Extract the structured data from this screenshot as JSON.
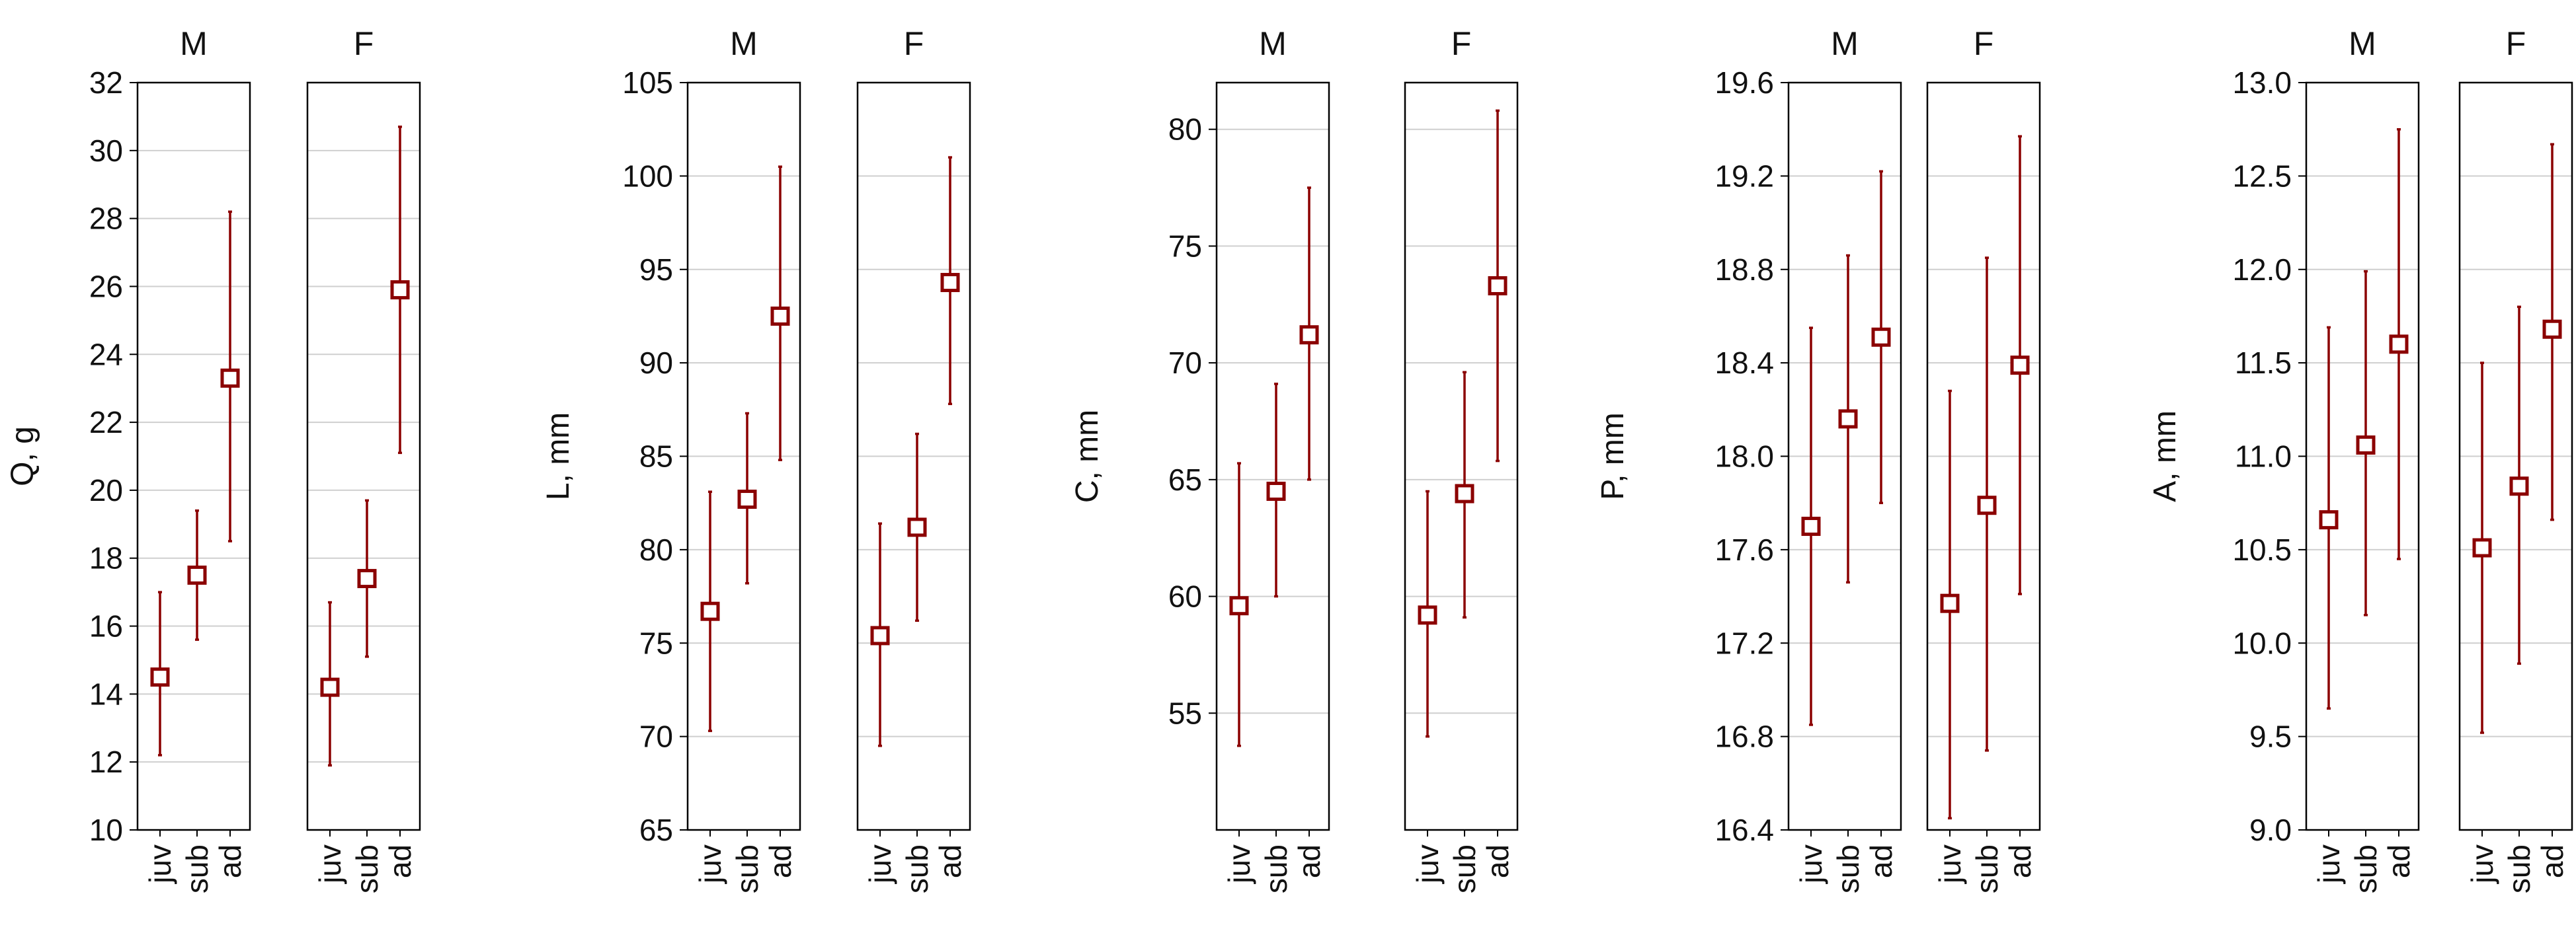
{
  "colors": {
    "marker": "#8b0000",
    "grid": "#cfcfcf",
    "frame": "#000000"
  },
  "chart_data": [
    {
      "type": "scatter",
      "ylabel": "Q, g",
      "ylim": [
        10,
        32
      ],
      "yticks": [
        "10",
        "12",
        "14",
        "16",
        "18",
        "20",
        "22",
        "24",
        "26",
        "28",
        "30",
        "32"
      ],
      "panels": [
        "M",
        "F"
      ],
      "categories": [
        "juv",
        "sub",
        "ad"
      ],
      "grid": true,
      "series": [
        {
          "panel": "M",
          "mean": [
            14.5,
            17.5,
            23.3
          ],
          "low": [
            12.2,
            15.6,
            18.5
          ],
          "high": [
            17.0,
            19.4,
            28.2
          ]
        },
        {
          "panel": "F",
          "mean": [
            14.2,
            17.4,
            25.9
          ],
          "low": [
            11.9,
            15.1,
            21.1
          ],
          "high": [
            16.7,
            19.7,
            30.7
          ]
        }
      ]
    },
    {
      "type": "scatter",
      "ylabel": "L, mm",
      "ylim": [
        65,
        105
      ],
      "yticks": [
        "65",
        "70",
        "75",
        "80",
        "85",
        "90",
        "95",
        "100",
        "105"
      ],
      "panels": [
        "M",
        "F"
      ],
      "categories": [
        "juv",
        "sub",
        "ad"
      ],
      "grid": true,
      "series": [
        {
          "panel": "M",
          "mean": [
            76.7,
            82.7,
            92.5
          ],
          "low": [
            70.3,
            78.2,
            84.8
          ],
          "high": [
            83.1,
            87.3,
            100.5
          ]
        },
        {
          "panel": "F",
          "mean": [
            75.4,
            81.2,
            94.3
          ],
          "low": [
            69.5,
            76.2,
            87.8
          ],
          "high": [
            81.4,
            86.2,
            101.0
          ]
        }
      ]
    },
    {
      "type": "scatter",
      "ylabel": "C, mm",
      "ylim": [
        50,
        82
      ],
      "yticks": [
        "55",
        "60",
        "65",
        "70",
        "75",
        "80"
      ],
      "panels": [
        "M",
        "F"
      ],
      "categories": [
        "juv",
        "sub",
        "ad"
      ],
      "grid": true,
      "series": [
        {
          "panel": "M",
          "mean": [
            59.6,
            64.5,
            71.2
          ],
          "low": [
            53.6,
            60.0,
            65.0
          ],
          "high": [
            65.7,
            69.1,
            77.5
          ]
        },
        {
          "panel": "F",
          "mean": [
            59.2,
            64.4,
            73.3
          ],
          "low": [
            54.0,
            59.1,
            65.8
          ],
          "high": [
            64.5,
            69.6,
            80.8
          ]
        }
      ]
    },
    {
      "type": "scatter",
      "ylabel": "P, mm",
      "ylim": [
        16.4,
        19.6
      ],
      "yticks": [
        "16.4",
        "16.8",
        "17.2",
        "17.6",
        "18.0",
        "18.4",
        "18.8",
        "19.2",
        "19.6"
      ],
      "panels": [
        "M",
        "F"
      ],
      "categories": [
        "juv",
        "sub",
        "ad"
      ],
      "grid": true,
      "series": [
        {
          "panel": "M",
          "mean": [
            17.7,
            18.16,
            18.51
          ],
          "low": [
            16.85,
            17.46,
            17.8
          ],
          "high": [
            18.55,
            18.86,
            19.22
          ]
        },
        {
          "panel": "F",
          "mean": [
            17.37,
            17.79,
            18.39
          ],
          "low": [
            16.45,
            16.74,
            17.41
          ],
          "high": [
            18.28,
            18.85,
            19.37
          ]
        }
      ]
    },
    {
      "type": "scatter",
      "ylabel": "A, mm",
      "ylim": [
        9.0,
        13.0
      ],
      "yticks": [
        "9.0",
        "9.5",
        "10.0",
        "10.5",
        "11.0",
        "11.5",
        "12.0",
        "12.5",
        "13.0"
      ],
      "panels": [
        "M",
        "F"
      ],
      "categories": [
        "juv",
        "sub",
        "ad"
      ],
      "grid": true,
      "series": [
        {
          "panel": "M",
          "mean": [
            10.66,
            11.06,
            11.6
          ],
          "low": [
            9.65,
            10.15,
            10.45
          ],
          "high": [
            11.69,
            11.99,
            12.75
          ]
        },
        {
          "panel": "F",
          "mean": [
            10.51,
            10.84,
            11.68
          ],
          "low": [
            9.52,
            9.89,
            10.66
          ],
          "high": [
            11.5,
            11.8,
            12.67
          ]
        }
      ]
    }
  ]
}
